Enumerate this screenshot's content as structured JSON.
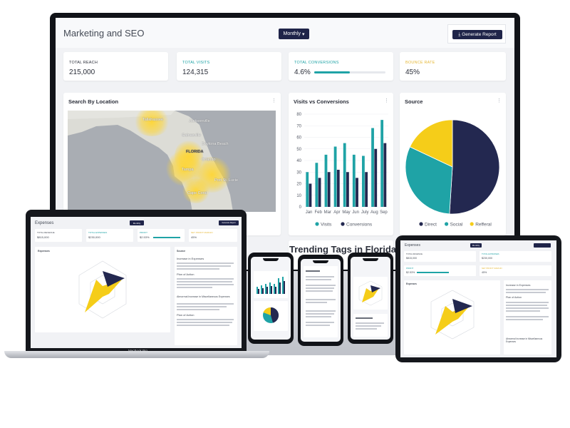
{
  "dashboard": {
    "title": "Marketing and SEO",
    "period_label": "Monthly",
    "generate_label": "Generate Report",
    "kpis": [
      {
        "label": "TOTAL REACH",
        "value": "215,000",
        "color": "#2b2f3a"
      },
      {
        "label": "TOTAL VISITS",
        "value": "124,315",
        "color": "#1fa3a6"
      },
      {
        "label": "TOTAL CONVERSIONS",
        "value": "4.6%",
        "color": "#1fa3a6",
        "progress": 0.5
      },
      {
        "label": "BOUNCE RATE",
        "value": "45%",
        "color": "#f2c94c"
      }
    ],
    "map_card": {
      "title": "Search By Location",
      "labels": [
        "Tallahassee",
        "Jacksonville",
        "Gainesville",
        "Daytona Beach",
        "FLORIDA",
        "Orlando",
        "Tampa",
        "Port St. Lucie",
        "Cape Coral"
      ]
    },
    "visits_card": {
      "title": "Visits vs Conversions"
    },
    "source_card": {
      "title": "Source"
    }
  },
  "trending_title": "Trending Tags in Florida",
  "laptop": {
    "title": "Expenses",
    "period_label": "Monthly",
    "generate_label": "Generate Report",
    "brand": "MacBook Pro",
    "kpis": [
      {
        "label": "TOTAL REVENUE",
        "value": "$815,000"
      },
      {
        "label": "TOTAL EXPENSES",
        "value": "$230,000"
      },
      {
        "label": "PROFIT",
        "value": "$2.53%"
      },
      {
        "label": "NET PROFIT MARGIN",
        "value": "45%"
      }
    ],
    "radar_title": "Expenses",
    "source_title": "Source",
    "source_headings": [
      "Increase in Expenses",
      "Plan of Action",
      "Abnormal Increase in Miscellaneous Expenses",
      "Plan of Action"
    ]
  },
  "tablet": {
    "title": "Expenses",
    "period_label": "Monthly",
    "kpis": [
      {
        "label": "TOTAL REVENUE",
        "value": "$815,000"
      },
      {
        "label": "TOTAL EXPENSES",
        "value": "$230,000"
      },
      {
        "label": "PROFIT",
        "value": "$2.53%"
      },
      {
        "label": "NET PROFIT MARGIN",
        "value": "45%"
      }
    ],
    "radar_title": "Expenses",
    "source_headings": [
      "Increase in Expenses",
      "Plan of Action",
      "Abnormal Increase in Miscellaneous Expenses"
    ]
  },
  "chart_data": [
    {
      "type": "bar",
      "title": "Visits vs Conversions",
      "categories": [
        "Jan",
        "Feb",
        "Mar",
        "Apr",
        "May",
        "Jun",
        "July",
        "Aug",
        "Sep"
      ],
      "series": [
        {
          "name": "Visits",
          "values": [
            30,
            38,
            45,
            52,
            55,
            45,
            44,
            68,
            75
          ],
          "color": "#1fa3a6"
        },
        {
          "name": "Conversions",
          "values": [
            20,
            25,
            30,
            32,
            30,
            25,
            30,
            50,
            55
          ],
          "color": "#232850"
        }
      ],
      "yticks": [
        0,
        10,
        20,
        30,
        40,
        50,
        60,
        70,
        80
      ],
      "ylim": [
        0,
        80
      ],
      "legend": "bottom"
    },
    {
      "type": "pie",
      "title": "Source",
      "labels": [
        "Direct",
        "Social",
        "Refferal"
      ],
      "values": [
        51,
        31,
        18
      ],
      "colors": [
        "#232850",
        "#1fa3a6",
        "#f5cd19"
      ],
      "legend": "bottom"
    }
  ]
}
